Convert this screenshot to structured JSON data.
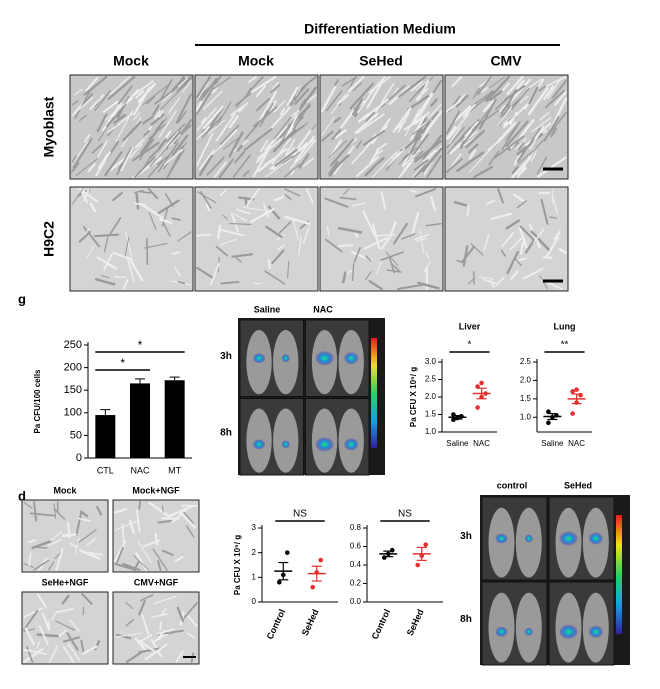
{
  "figure": {
    "header": "Differentiation Medium",
    "columns": [
      "Mock",
      "Mock",
      "SeHed",
      "CMV"
    ],
    "rows": [
      "Myoblast",
      "H9C2"
    ],
    "panel_g": "g",
    "panel_d": "d",
    "imaging_g": {
      "columns": [
        "Saline",
        "NAC"
      ],
      "rows": [
        "3h",
        "8h"
      ]
    },
    "cells_d": [
      "Mock",
      "Mock+NGF",
      "SeHe+NGF",
      "CMV+NGF"
    ],
    "imaging_d": {
      "columns": [
        "control",
        "SeHed"
      ],
      "rows": [
        "3h",
        "8h"
      ]
    }
  },
  "chart_data": [
    {
      "type": "bar",
      "y_label": "Pa CFU/100 cells",
      "categories": [
        "CTL",
        "NAC",
        "MT"
      ],
      "values": [
        95,
        165,
        172
      ],
      "errors": [
        12,
        10,
        7
      ],
      "color": "#000000",
      "ylim": [
        0,
        250
      ],
      "yticks": [
        0,
        50,
        100,
        150,
        200,
        250
      ],
      "significance": [
        "*",
        "*"
      ]
    },
    {
      "type": "dot",
      "title": "Liver",
      "y_label": "Pa CFU X 10⁵/ g",
      "categories": [
        "Saline",
        "NAC"
      ],
      "points": [
        [
          1.35,
          1.4,
          1.45,
          1.5,
          1.4
        ],
        [
          1.7,
          2.0,
          2.1,
          2.3,
          2.4
        ]
      ],
      "means": [
        1.42,
        2.1
      ],
      "errors": [
        0.05,
        0.15
      ],
      "colors": [
        "#000000",
        "#e03030"
      ],
      "ylim": [
        1.0,
        3.0
      ],
      "yticks": [
        {
          "value": 1.0,
          "label": "1.0"
        },
        {
          "value": 1.5,
          "label": "1.5"
        },
        {
          "value": 2.0,
          "label": "2.0"
        },
        {
          "value": 2.5,
          "label": "2.5"
        },
        {
          "value": 3.0,
          "label": "3.0"
        }
      ],
      "significance": [
        "*"
      ]
    },
    {
      "type": "dot",
      "title": "Lung",
      "categories": [
        "Saline",
        "NAC"
      ],
      "points": [
        [
          0.85,
          1.0,
          1.05,
          1.15
        ],
        [
          1.1,
          1.4,
          1.6,
          1.7,
          1.75
        ]
      ],
      "means": [
        1.02,
        1.5
      ],
      "errors": [
        0.08,
        0.13
      ],
      "colors": [
        "#000000",
        "#e03030"
      ],
      "ylim": [
        0.6,
        2.5
      ],
      "yticks": [
        {
          "value": 1.0,
          "label": "1.0"
        },
        {
          "value": 1.5,
          "label": "1.5"
        },
        {
          "value": 2.0,
          "label": "2.0"
        },
        {
          "value": 2.5,
          "label": "2.5"
        }
      ],
      "significance": [
        "**"
      ]
    },
    {
      "type": "dot",
      "y_label": "Pa CFU X 10⁵/ g",
      "categories": [
        "Control",
        "SeHed"
      ],
      "points": [
        [
          0.8,
          1.1,
          2.0
        ],
        [
          0.6,
          1.2,
          1.7
        ]
      ],
      "means": [
        1.25,
        1.15
      ],
      "errors": [
        0.35,
        0.3
      ],
      "colors": [
        "#000000",
        "#e03030"
      ],
      "ylim": [
        0,
        3
      ],
      "yticks": [
        0,
        1,
        2,
        3
      ],
      "significance": [
        "NS"
      ]
    },
    {
      "type": "dot",
      "categories": [
        "Control",
        "SeHed"
      ],
      "points": [
        [
          0.48,
          0.52,
          0.56
        ],
        [
          0.4,
          0.5,
          0.62
        ]
      ],
      "means": [
        0.52,
        0.52
      ],
      "errors": [
        0.03,
        0.07
      ],
      "colors": [
        "#000000",
        "#e03030"
      ],
      "ylim": [
        0,
        0.8
      ],
      "yticks": [
        {
          "value": 0.0,
          "label": "0.0"
        },
        {
          "value": 0.2,
          "label": "0.2"
        },
        {
          "value": 0.4,
          "label": "0.4"
        },
        {
          "value": 0.6,
          "label": "0.6"
        },
        {
          "value": 0.8,
          "label": "0.8"
        }
      ],
      "significance": [
        "NS"
      ]
    }
  ]
}
